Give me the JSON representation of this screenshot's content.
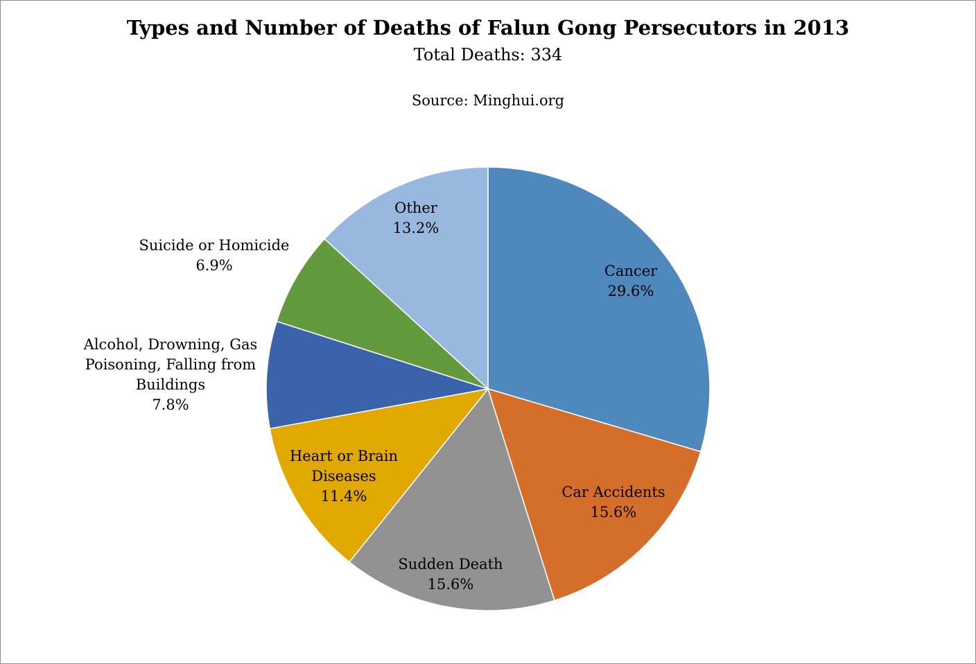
{
  "chart_data": {
    "type": "pie",
    "title": "Types and Number of Deaths of Falun Gong Persecutors in 2013",
    "subtitle": "Total Deaths: 334",
    "source": "Source: Minghui.org",
    "unit": "%",
    "slices": [
      {
        "label": [
          "Cancer"
        ],
        "value": 29.6,
        "value_label": "29.6%",
        "color": "#4f88bd"
      },
      {
        "label": [
          "Car Accidents"
        ],
        "value": 15.6,
        "value_label": "15.6%",
        "color": "#d66e2b"
      },
      {
        "label": [
          "Sudden Death"
        ],
        "value": 15.6,
        "value_label": "15.6%",
        "color": "#929292"
      },
      {
        "label": [
          "Heart or Brain",
          "Diseases"
        ],
        "value": 11.4,
        "value_label": "11.4%",
        "color": "#e0a800"
      },
      {
        "label": [
          "Alcohol, Drowning, Gas",
          "Poisoning, Falling from",
          "Buildings"
        ],
        "value": 7.8,
        "value_label": "7.8%",
        "color": "#3b63ab"
      },
      {
        "label": [
          "Suicide or Homicide"
        ],
        "value": 6.9,
        "value_label": "6.9%",
        "color": "#649a3e"
      },
      {
        "label": [
          "Other"
        ],
        "value": 13.2,
        "value_label": "13.2%",
        "color": "#98b8df"
      }
    ]
  }
}
